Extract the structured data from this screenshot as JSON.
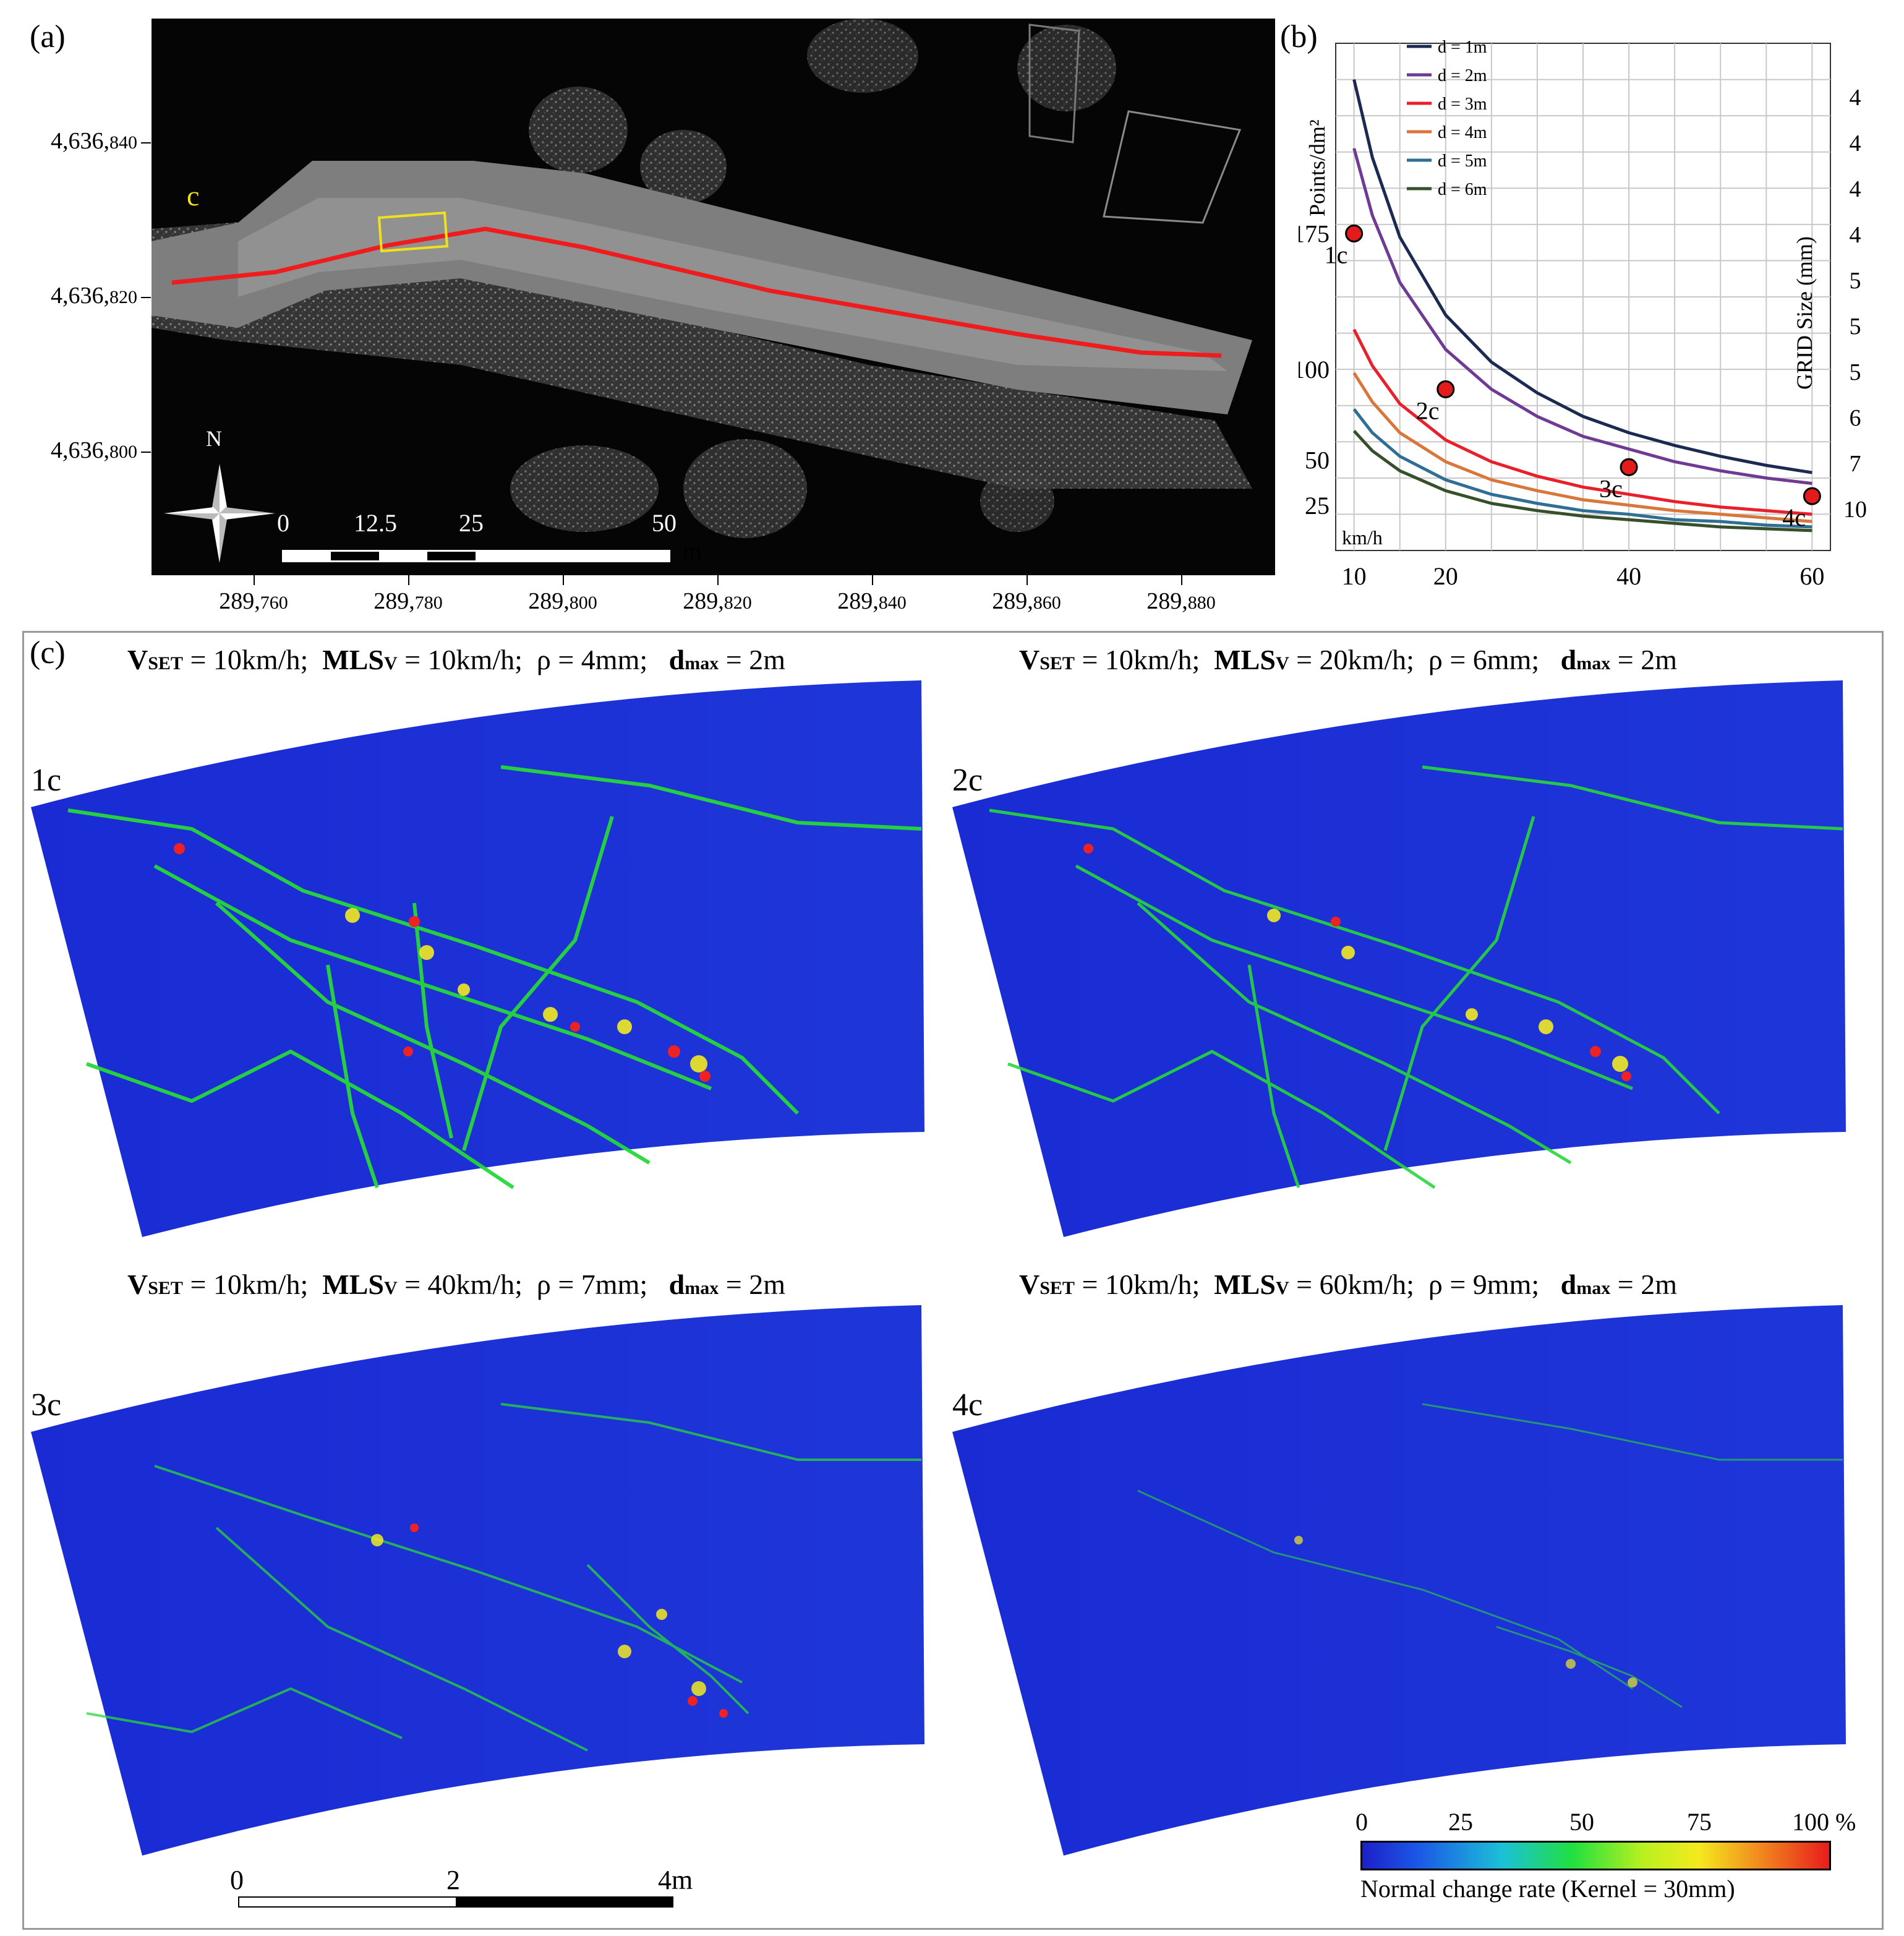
{
  "panel_a": {
    "label": "(a)",
    "y_ticks": [
      {
        "main": "4,636,",
        "sub": "840"
      },
      {
        "main": "4,636,",
        "sub": "820"
      },
      {
        "main": "4,636,",
        "sub": "800"
      }
    ],
    "x_ticks": [
      {
        "main": "289,",
        "sub": "760"
      },
      {
        "main": "289,",
        "sub": "780"
      },
      {
        "main": "289,",
        "sub": "800"
      },
      {
        "main": "289,",
        "sub": "820"
      },
      {
        "main": "289,",
        "sub": "840"
      },
      {
        "main": "289,",
        "sub": "860"
      },
      {
        "main": "289,",
        "sub": "880"
      }
    ],
    "inset_label": "c",
    "north_label": "N",
    "scale": {
      "labels": [
        "0",
        "12.5",
        "25",
        "50"
      ],
      "unit": "m"
    }
  },
  "panel_b": {
    "label": "(b)",
    "ylabel": "Points/dm²",
    "y_ticks": [
      "175",
      "100",
      "50",
      "25"
    ],
    "x_unit": "km/h",
    "x_ticks": [
      "10",
      "20",
      "40",
      "60"
    ],
    "right_label": "GRID Size (mm)",
    "right_ticks": [
      "4",
      "4",
      "4",
      "4",
      "5",
      "5",
      "5",
      "6",
      "7",
      "10"
    ],
    "legend": [
      "d = 1m",
      "d = 2m",
      "d = 3m",
      "d = 4m",
      "d = 5m",
      "d = 6m"
    ],
    "points": [
      "1c",
      "2c",
      "3c",
      "4c"
    ]
  },
  "chart_data": {
    "type": "line",
    "xlabel": "km/h",
    "ylabel": "Points/dm²",
    "x": [
      10,
      12,
      15,
      20,
      25,
      30,
      35,
      40,
      45,
      50,
      55,
      60
    ],
    "colors": [
      "#1c2a52",
      "#6f3a93",
      "#e8202a",
      "#d9773a",
      "#2f6f95",
      "#37502a"
    ],
    "series": [
      {
        "name": "d = 1m",
        "values": [
          260,
          217,
          173,
          130,
          104,
          87,
          74,
          65,
          58,
          52,
          47,
          43
        ]
      },
      {
        "name": "d = 2m",
        "values": [
          222,
          185,
          148,
          111,
          89,
          74,
          63,
          56,
          49,
          44,
          40,
          37
        ]
      },
      {
        "name": "d = 3m",
        "values": [
          122,
          102,
          81,
          61,
          49,
          41,
          35,
          31,
          27,
          24,
          22,
          20
        ]
      },
      {
        "name": "d = 4m",
        "values": [
          98,
          82,
          65,
          49,
          39,
          33,
          28,
          25,
          22,
          20,
          18,
          16
        ]
      },
      {
        "name": "d = 5m",
        "values": [
          78,
          65,
          52,
          39,
          31,
          26,
          22,
          20,
          17,
          16,
          14,
          13
        ]
      },
      {
        "name": "d = 6m",
        "values": [
          66,
          55,
          44,
          33,
          26,
          22,
          19,
          17,
          15,
          13,
          12,
          11
        ]
      }
    ],
    "highlight_points": [
      {
        "label": "1c",
        "x": 10,
        "y": 175
      },
      {
        "label": "2c",
        "x": 20,
        "y": 89
      },
      {
        "label": "3c",
        "x": 40,
        "y": 46
      },
      {
        "label": "4c",
        "x": 60,
        "y": 30
      }
    ]
  },
  "panel_c": {
    "label": "(c)",
    "maps": [
      {
        "tag": "1c",
        "vset": "= 10km/h;",
        "mlsv": "= 10km/h;",
        "rho": "ρ = 4mm;",
        "dmax": "= 2m"
      },
      {
        "tag": "2c",
        "vset": "= 10km/h;",
        "mlsv": "= 20km/h;",
        "rho": "ρ = 6mm;",
        "dmax": "= 2m"
      },
      {
        "tag": "3c",
        "vset": "= 10km/h;",
        "mlsv": "= 40km/h;",
        "rho": "ρ = 7mm;",
        "dmax": "= 2m"
      },
      {
        "tag": "4c",
        "vset": "= 10km/h;",
        "mlsv": "= 60km/h;",
        "rho": "ρ = 9mm;",
        "dmax": "= 2m"
      }
    ],
    "var_v": "V",
    "var_v_sub": "SET",
    "var_mls": "MLS",
    "var_mls_sub": "V",
    "var_d": "d",
    "var_d_sub": "max",
    "scale": {
      "labels": [
        "0",
        "2",
        "4m"
      ]
    },
    "colorbar": {
      "ticks": [
        "0",
        "25",
        "50",
        "75",
        "100 %"
      ],
      "label": "Normal change rate (Kernel = 30mm)"
    }
  }
}
